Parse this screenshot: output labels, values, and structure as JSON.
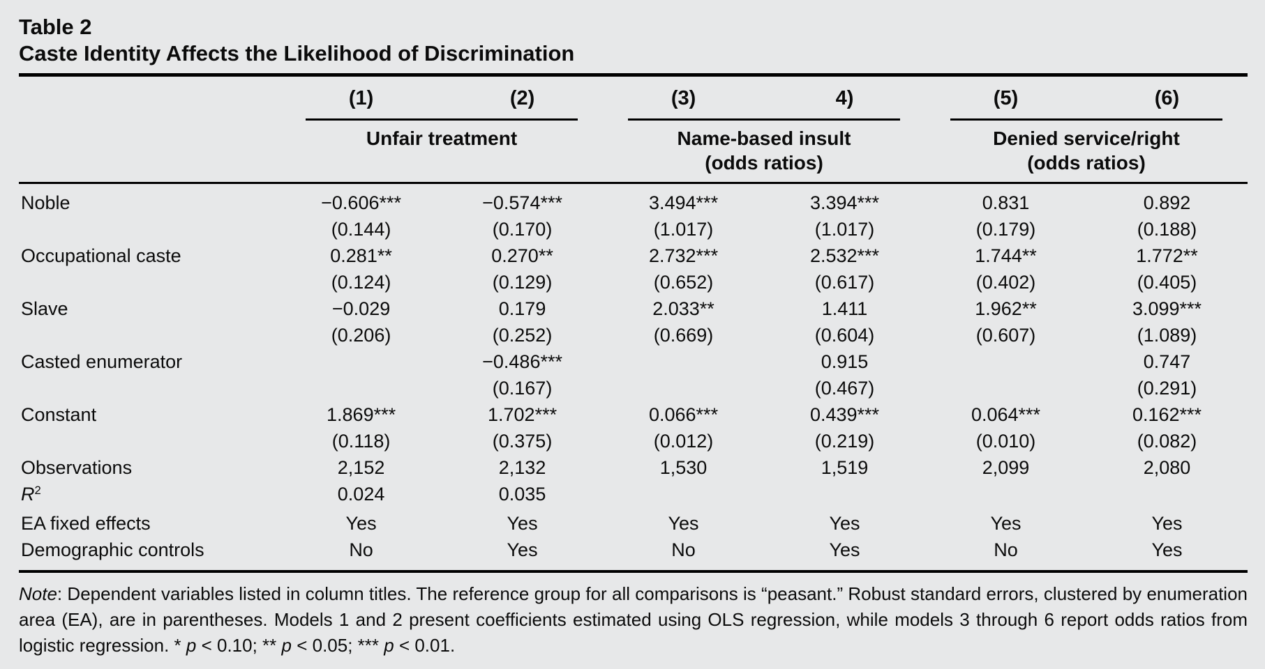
{
  "page": {
    "background_color": "#e7e8e9",
    "text_color": "#0b0b0b",
    "rule_color": "#000000"
  },
  "title": {
    "line1": "Table 2",
    "line2": "Caste Identity Affects the Likelihood of Discrimination"
  },
  "header": {
    "column_numbers": [
      "(1)",
      "(2)",
      "(3)",
      "4)",
      "(5)",
      "(6)"
    ],
    "groups": [
      {
        "label": "Unfair treatment",
        "sublabel": ""
      },
      {
        "label": "Name-based insult",
        "sublabel": "(odds ratios)"
      },
      {
        "label": "Denied service/right",
        "sublabel": "(odds ratios)"
      }
    ]
  },
  "coefficient_rows": [
    {
      "label": "Noble",
      "values": [
        "−0.606***",
        "−0.574***",
        "3.494***",
        "3.394***",
        "0.831",
        "0.892"
      ],
      "se": [
        "(0.144)",
        "(0.170)",
        "(1.017)",
        "(1.017)",
        "(0.179)",
        "(0.188)"
      ]
    },
    {
      "label": "Occupational caste",
      "values": [
        "0.281**",
        "0.270**",
        "2.732***",
        "2.532***",
        "1.744**",
        "1.772**"
      ],
      "se": [
        "(0.124)",
        "(0.129)",
        "(0.652)",
        "(0.617)",
        "(0.402)",
        "(0.405)"
      ]
    },
    {
      "label": "Slave",
      "values": [
        "−0.029",
        "0.179",
        "2.033**",
        "1.411",
        "1.962**",
        "3.099***"
      ],
      "se": [
        "(0.206)",
        "(0.252)",
        "(0.669)",
        "(0.604)",
        "(0.607)",
        "(1.089)"
      ]
    },
    {
      "label": "Casted enumerator",
      "values": [
        "",
        "−0.486***",
        "",
        "0.915",
        "",
        "0.747"
      ],
      "se": [
        "",
        "(0.167)",
        "",
        "(0.467)",
        "",
        "(0.291)"
      ]
    },
    {
      "label": "Constant",
      "values": [
        "1.869***",
        "1.702***",
        "0.066***",
        "0.439***",
        "0.064***",
        "0.162***"
      ],
      "se": [
        "(0.118)",
        "(0.375)",
        "(0.012)",
        "(0.219)",
        "(0.010)",
        "(0.082)"
      ]
    }
  ],
  "summary_rows": [
    {
      "label": "Observations",
      "values": [
        "2,152",
        "2,132",
        "1,530",
        "1,519",
        "2,099",
        "2,080"
      ]
    },
    {
      "label": "R",
      "label_superscript": "2",
      "label_italic": true,
      "values": [
        "0.024",
        "0.035",
        "",
        "",
        "",
        ""
      ]
    },
    {
      "label": "EA fixed effects",
      "values": [
        "Yes",
        "Yes",
        "Yes",
        "Yes",
        "Yes",
        "Yes"
      ]
    },
    {
      "label": "Demographic controls",
      "values": [
        "No",
        "Yes",
        "No",
        "Yes",
        "No",
        "Yes"
      ]
    }
  ],
  "note": {
    "segments": [
      {
        "text": "Note",
        "italic": true
      },
      {
        "text": ": Dependent variables listed in column titles. The reference group for all comparisons is “peasant.” Robust standard errors, clustered by enumeration area (EA), are in parentheses. Models 1 and 2 present coefficients estimated using OLS regression, while models 3 through 6 report odds ratios from logistic regression. * ",
        "italic": false
      },
      {
        "text": "p",
        "italic": true
      },
      {
        "text": " < 0.10; ** ",
        "italic": false
      },
      {
        "text": "p",
        "italic": true
      },
      {
        "text": " < 0.05; *** ",
        "italic": false
      },
      {
        "text": "p",
        "italic": true
      },
      {
        "text": " < 0.01.",
        "italic": false
      }
    ]
  }
}
